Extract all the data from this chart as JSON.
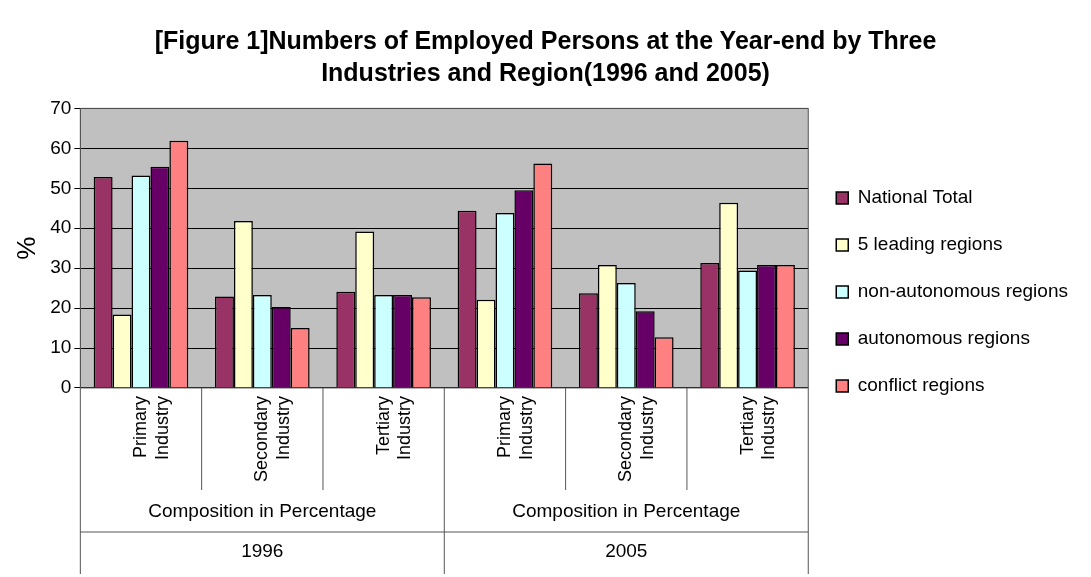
{
  "chart_data": {
    "type": "bar",
    "title": "[Figure 1]Numbers of Employed Persons at the Year-end by Three Industries and Region(1996 and 2005)",
    "ylabel": "%",
    "categories": [
      "Primary Industry",
      "Secondary Industry",
      "Tertiary Industry",
      "Primary Industry",
      "Secondary Industry",
      "Tertiary Industry"
    ],
    "annotations": [
      "Composition in Percentage",
      "1996",
      "Composition in Percentage",
      "2005"
    ],
    "series": [
      {
        "name": "National Total",
        "color": "#993366",
        "values": [
          52.8,
          22.9,
          24.1,
          44.4,
          23.7,
          31.3
        ]
      },
      {
        "name": "5 leading regions",
        "color": "#ffffcc",
        "values": [
          18.4,
          41.8,
          39.2,
          22.1,
          30.8,
          46.4
        ]
      },
      {
        "name": "non-autonomous regions",
        "color": "#ccffff",
        "values": [
          53.2,
          23.3,
          23.3,
          43.8,
          26.3,
          29.4
        ]
      },
      {
        "name": "autonomous regions",
        "color": "#660066",
        "values": [
          55.4,
          20.3,
          23.3,
          49.5,
          19.2,
          30.8
        ]
      },
      {
        "name": "conflict regions",
        "color": "#ff8080",
        "values": [
          61.9,
          15.0,
          22.7,
          56.2,
          12.7,
          30.8
        ]
      }
    ],
    "ylim": [
      0,
      70
    ],
    "yticks": [
      0,
      10,
      20,
      30,
      40,
      50,
      60,
      70
    ],
    "grid": "y",
    "legend": "right"
  }
}
